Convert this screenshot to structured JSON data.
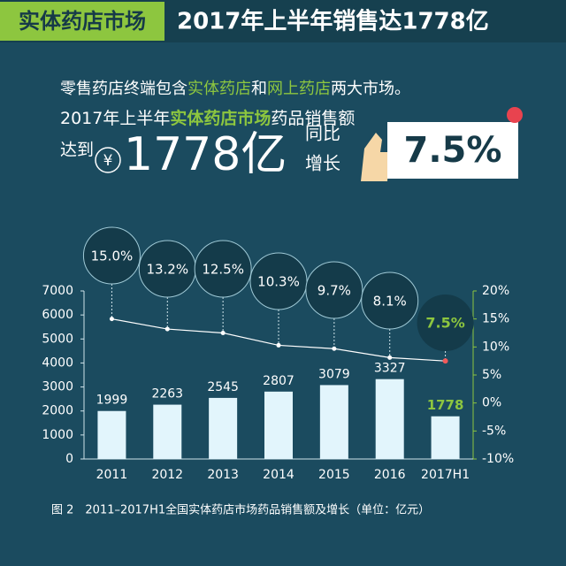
{
  "header": {
    "tag": "实体药店市场",
    "title": "2017年上半年销售达1778亿"
  },
  "intro": {
    "line1": [
      {
        "text": "零售药店终端包含",
        "color": "#ffffff"
      },
      {
        "text": "实体药店",
        "color": "#8dc63f"
      },
      {
        "text": "和",
        "color": "#ffffff"
      },
      {
        "text": "网上药店",
        "color": "#8dc63f"
      },
      {
        "text": "两大市场。",
        "color": "#ffffff"
      }
    ],
    "line2": [
      {
        "text": "2017年上半年",
        "color": "#ffffff"
      },
      {
        "text": "实体药店市场",
        "color": "#8dc63f"
      },
      {
        "text": "药品销售额",
        "color": "#ffffff"
      }
    ],
    "reach": "达到",
    "currency": "¥",
    "amount": "1778亿",
    "yoy": "同比",
    "growth": "增长",
    "rate": "7.5%"
  },
  "chart_data": {
    "type": "bar",
    "categories": [
      "2011",
      "2012",
      "2013",
      "2014",
      "2015",
      "2016",
      "2017H1"
    ],
    "series": [
      {
        "type": "bar",
        "color": "#e2f5fc",
        "values": [
          1999,
          2263,
          2545,
          2807,
          3079,
          3327,
          1778
        ],
        "highlight_color": "#8dc63f",
        "highlight_index": 6
      },
      {
        "type": "line",
        "axis": "y2",
        "color": "#ffffff",
        "values": [
          15.0,
          13.2,
          12.5,
          10.3,
          9.7,
          8.1,
          7.5
        ],
        "value_labels": [
          "15.0%",
          "13.2%",
          "12.5%",
          "10.3%",
          "9.7%",
          "8.1%",
          "7.5%"
        ]
      }
    ],
    "ylim": [
      0,
      7000
    ],
    "yticks": [
      0,
      1000,
      2000,
      3000,
      4000,
      5000,
      6000,
      7000
    ],
    "y2lim": [
      -10,
      20
    ],
    "y2ticks": [
      {
        "value": -10,
        "label": "-10%"
      },
      {
        "value": -5,
        "label": "-5%"
      },
      {
        "value": 0,
        "label": "0%"
      },
      {
        "value": 5,
        "label": "5%"
      },
      {
        "value": 10,
        "label": "10%"
      },
      {
        "value": 15,
        "label": "15%"
      },
      {
        "value": 20,
        "label": "20%"
      }
    ],
    "caption": "图 2　2011–2017H1全国实体药店市场药品销售额及增长（单位：亿元）"
  }
}
